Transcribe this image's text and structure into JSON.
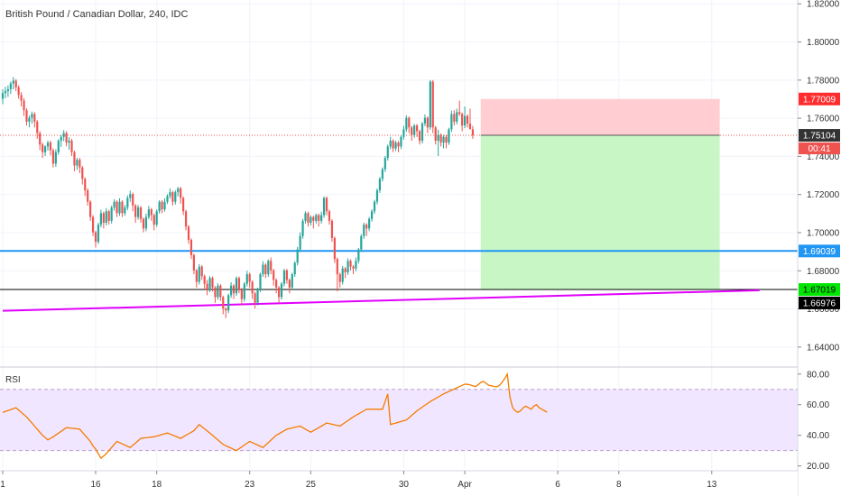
{
  "colors": {
    "up": "#26a69a",
    "down": "#ef5350",
    "stop_zone": "#ffcdd2",
    "target_zone": "#c8f7c5",
    "support_line": "#2196f3",
    "trendline": "#e100ff",
    "rsi_line": "#f57c00",
    "rsi_band": "#f1e6ff",
    "price_dotted": "#ef5350"
  },
  "chart_data": {
    "type": "candlestick",
    "title": "British Pound / Canadian Dollar, 240, IDC",
    "y_ticks": [
      "1.82000",
      "1.80000",
      "1.78000",
      "1.76000",
      "1.74000",
      "1.72000",
      "1.70000",
      "1.68000",
      "1.66000",
      "1.64000"
    ],
    "ylim": [
      1.63,
      1.822
    ],
    "x_ticks": [
      {
        "label": "1",
        "index": 0
      },
      {
        "label": "16",
        "index": 35
      },
      {
        "label": "18",
        "index": 58
      },
      {
        "label": "23",
        "index": 93
      },
      {
        "label": "25",
        "index": 116
      },
      {
        "label": "30",
        "index": 151
      },
      {
        "label": "Apr",
        "index": 174
      },
      {
        "label": "6",
        "index": 209
      },
      {
        "label": "8",
        "index": 232
      },
      {
        "label": "13",
        "index": 267
      }
    ],
    "candles": [
      [
        1.7702,
        1.7752,
        1.7674,
        1.7732
      ],
      [
        1.7732,
        1.7765,
        1.7705,
        1.7742
      ],
      [
        1.7742,
        1.7772,
        1.7712,
        1.7752
      ],
      [
        1.7752,
        1.7792,
        1.7728,
        1.7782
      ],
      [
        1.7782,
        1.7816,
        1.7752,
        1.7797
      ],
      [
        1.7797,
        1.7805,
        1.7742,
        1.7762
      ],
      [
        1.7762,
        1.7772,
        1.7702,
        1.7722
      ],
      [
        1.7722,
        1.7737,
        1.7662,
        1.7692
      ],
      [
        1.7692,
        1.7705,
        1.7612,
        1.7642
      ],
      [
        1.7642,
        1.7652,
        1.7562,
        1.7582
      ],
      [
        1.7582,
        1.7614,
        1.7552,
        1.7602
      ],
      [
        1.7602,
        1.7635,
        1.7572,
        1.7622
      ],
      [
        1.7622,
        1.7632,
        1.7552,
        1.7582
      ],
      [
        1.7582,
        1.759,
        1.7492,
        1.7522
      ],
      [
        1.7522,
        1.7532,
        1.7432,
        1.7462
      ],
      [
        1.7462,
        1.7472,
        1.7392,
        1.7422
      ],
      [
        1.7422,
        1.7458,
        1.7402,
        1.7452
      ],
      [
        1.7452,
        1.7482,
        1.743,
        1.7472
      ],
      [
        1.7472,
        1.7482,
        1.7405,
        1.7432
      ],
      [
        1.7432,
        1.7442,
        1.7342,
        1.7362
      ],
      [
        1.7362,
        1.7437,
        1.7345,
        1.7422
      ],
      [
        1.7422,
        1.749,
        1.7408,
        1.7482
      ],
      [
        1.7482,
        1.7512,
        1.745,
        1.7502
      ],
      [
        1.7502,
        1.7538,
        1.748,
        1.7522
      ],
      [
        1.7522,
        1.7532,
        1.7452,
        1.7472
      ],
      [
        1.7472,
        1.75,
        1.7435,
        1.7482
      ],
      [
        1.7482,
        1.7492,
        1.7402,
        1.7422
      ],
      [
        1.7422,
        1.743,
        1.7322,
        1.7352
      ],
      [
        1.7352,
        1.7392,
        1.733,
        1.7382
      ],
      [
        1.7382,
        1.7392,
        1.7312,
        1.7342
      ],
      [
        1.7342,
        1.735,
        1.7252,
        1.7282
      ],
      [
        1.7282,
        1.729,
        1.7192,
        1.7222
      ],
      [
        1.7222,
        1.7232,
        1.7142,
        1.7162
      ],
      [
        1.7162,
        1.717,
        1.7062,
        1.7082
      ],
      [
        1.7082,
        1.7092,
        1.6982,
        1.7002
      ],
      [
        1.7002,
        1.701,
        1.6922,
        1.6952
      ],
      [
        1.6952,
        1.7052,
        1.694,
        1.7042
      ],
      [
        1.7042,
        1.712,
        1.7028,
        1.7102
      ],
      [
        1.7102,
        1.711,
        1.7022,
        1.7052
      ],
      [
        1.7052,
        1.7128,
        1.7038,
        1.7112
      ],
      [
        1.7112,
        1.712,
        1.7042,
        1.7062
      ],
      [
        1.7062,
        1.7142,
        1.7048,
        1.7132
      ],
      [
        1.7132,
        1.7175,
        1.7115,
        1.7162
      ],
      [
        1.7162,
        1.717,
        1.7082,
        1.7102
      ],
      [
        1.7102,
        1.718,
        1.7088,
        1.7162
      ],
      [
        1.7162,
        1.717,
        1.7082,
        1.7102
      ],
      [
        1.7102,
        1.7145,
        1.7088,
        1.7132
      ],
      [
        1.7132,
        1.7195,
        1.7118,
        1.7182
      ],
      [
        1.7182,
        1.722,
        1.7162,
        1.7202
      ],
      [
        1.7202,
        1.721,
        1.7112,
        1.7142
      ],
      [
        1.7142,
        1.715,
        1.7052,
        1.7082
      ],
      [
        1.7082,
        1.7145,
        1.7068,
        1.7132
      ],
      [
        1.7132,
        1.714,
        1.7052,
        1.7072
      ],
      [
        1.7072,
        1.708,
        1.7002,
        1.7022
      ],
      [
        1.7022,
        1.71,
        1.7008,
        1.7082
      ],
      [
        1.7082,
        1.714,
        1.707,
        1.7122
      ],
      [
        1.7122,
        1.713,
        1.7062,
        1.7092
      ],
      [
        1.7092,
        1.71,
        1.7012,
        1.7042
      ],
      [
        1.7042,
        1.7122,
        1.703,
        1.7112
      ],
      [
        1.7112,
        1.717,
        1.71,
        1.7162
      ],
      [
        1.7162,
        1.717,
        1.7102,
        1.7122
      ],
      [
        1.7122,
        1.718,
        1.711,
        1.7162
      ],
      [
        1.7162,
        1.7202,
        1.715,
        1.7192
      ],
      [
        1.7192,
        1.7232,
        1.7178,
        1.7212
      ],
      [
        1.7212,
        1.722,
        1.7142,
        1.7162
      ],
      [
        1.7162,
        1.7222,
        1.7148,
        1.7212
      ],
      [
        1.7212,
        1.724,
        1.719,
        1.7232
      ],
      [
        1.7232,
        1.724,
        1.7152,
        1.7182
      ],
      [
        1.7182,
        1.719,
        1.7092,
        1.7112
      ],
      [
        1.7112,
        1.712,
        1.7012,
        1.7032
      ],
      [
        1.7032,
        1.704,
        1.6942,
        1.6962
      ],
      [
        1.6962,
        1.697,
        1.6862,
        1.6882
      ],
      [
        1.6882,
        1.689,
        1.6782,
        1.6802
      ],
      [
        1.6802,
        1.681,
        1.6712,
        1.6742
      ],
      [
        1.6742,
        1.6835,
        1.6728,
        1.6822
      ],
      [
        1.6822,
        1.683,
        1.6752,
        1.6772
      ],
      [
        1.6772,
        1.678,
        1.6702,
        1.6732
      ],
      [
        1.6732,
        1.6752,
        1.6672,
        1.6702
      ],
      [
        1.6702,
        1.6772,
        1.6688,
        1.6762
      ],
      [
        1.6762,
        1.677,
        1.6692,
        1.6712
      ],
      [
        1.6712,
        1.672,
        1.6632,
        1.6662
      ],
      [
        1.6662,
        1.6735,
        1.6648,
        1.6722
      ],
      [
        1.6722,
        1.673,
        1.6642,
        1.6662
      ],
      [
        1.6662,
        1.667,
        1.6572,
        1.6602
      ],
      [
        1.6602,
        1.661,
        1.6552,
        1.6592
      ],
      [
        1.6592,
        1.668,
        1.6578,
        1.6672
      ],
      [
        1.6672,
        1.674,
        1.6658,
        1.6722
      ],
      [
        1.6722,
        1.673,
        1.6652,
        1.6682
      ],
      [
        1.6682,
        1.677,
        1.6668,
        1.6762
      ],
      [
        1.6762,
        1.677,
        1.6682,
        1.6702
      ],
      [
        1.6702,
        1.671,
        1.6622,
        1.6652
      ],
      [
        1.6652,
        1.674,
        1.6638,
        1.6732
      ],
      [
        1.6732,
        1.68,
        1.6718,
        1.6782
      ],
      [
        1.6782,
        1.679,
        1.6712,
        1.6742
      ],
      [
        1.6742,
        1.675,
        1.6652,
        1.6682
      ],
      [
        1.6682,
        1.669,
        1.6602,
        1.6632
      ],
      [
        1.6632,
        1.6712,
        1.6618,
        1.6702
      ],
      [
        1.6702,
        1.679,
        1.6688,
        1.6782
      ],
      [
        1.6782,
        1.685,
        1.6768,
        1.6832
      ],
      [
        1.6832,
        1.684,
        1.6762,
        1.6782
      ],
      [
        1.6782,
        1.686,
        1.6768,
        1.6852
      ],
      [
        1.6852,
        1.687,
        1.6782,
        1.6802
      ],
      [
        1.6802,
        1.681,
        1.6722,
        1.6752
      ],
      [
        1.6752,
        1.676,
        1.6682,
        1.6712
      ],
      [
        1.6712,
        1.672,
        1.6632,
        1.6662
      ],
      [
        1.6662,
        1.674,
        1.6648,
        1.6732
      ],
      [
        1.6732,
        1.681,
        1.6718,
        1.6802
      ],
      [
        1.6802,
        1.681,
        1.6732,
        1.6752
      ],
      [
        1.6752,
        1.676,
        1.6682,
        1.6712
      ],
      [
        1.6712,
        1.679,
        1.6698,
        1.6782
      ],
      [
        1.6782,
        1.685,
        1.6768,
        1.6842
      ],
      [
        1.6842,
        1.6925,
        1.6828,
        1.6912
      ],
      [
        1.6912,
        1.7002,
        1.6898,
        1.6982
      ],
      [
        1.6982,
        1.7072,
        1.6968,
        1.7062
      ],
      [
        1.7062,
        1.7112,
        1.7048,
        1.7102
      ],
      [
        1.7102,
        1.711,
        1.7032,
        1.7052
      ],
      [
        1.7052,
        1.709,
        1.7038,
        1.7082
      ],
      [
        1.7082,
        1.709,
        1.7022,
        1.7062
      ],
      [
        1.7062,
        1.71,
        1.7048,
        1.7092
      ],
      [
        1.7092,
        1.71,
        1.7032,
        1.7062
      ],
      [
        1.7062,
        1.711,
        1.7048,
        1.7092
      ],
      [
        1.7092,
        1.719,
        1.7078,
        1.7182
      ],
      [
        1.7182,
        1.719,
        1.7092,
        1.7112
      ],
      [
        1.7112,
        1.712,
        1.7042,
        1.7062
      ],
      [
        1.7062,
        1.707,
        1.6952,
        1.6972
      ],
      [
        1.6972,
        1.698,
        1.6842,
        1.6862
      ],
      [
        1.6862,
        1.687,
        1.6692,
        1.6782
      ],
      [
        1.6782,
        1.679,
        1.6712,
        1.6742
      ],
      [
        1.6742,
        1.6825,
        1.6728,
        1.6812
      ],
      [
        1.6812,
        1.682,
        1.6762,
        1.6792
      ],
      [
        1.6792,
        1.6865,
        1.6778,
        1.6852
      ],
      [
        1.6852,
        1.686,
        1.6802,
        1.6822
      ],
      [
        1.6822,
        1.683,
        1.6782,
        1.6812
      ],
      [
        1.6812,
        1.687,
        1.6798,
        1.6852
      ],
      [
        1.6852,
        1.692,
        1.6838,
        1.6912
      ],
      [
        1.6912,
        1.6992,
        1.6898,
        1.6982
      ],
      [
        1.6982,
        1.7052,
        1.6968,
        1.7042
      ],
      [
        1.7042,
        1.705,
        1.6982,
        1.7022
      ],
      [
        1.7022,
        1.7082,
        1.7008,
        1.7072
      ],
      [
        1.7072,
        1.7122,
        1.7058,
        1.7112
      ],
      [
        1.7112,
        1.7172,
        1.7098,
        1.7162
      ],
      [
        1.7162,
        1.7232,
        1.7148,
        1.7222
      ],
      [
        1.7222,
        1.7292,
        1.7208,
        1.7282
      ],
      [
        1.7282,
        1.7342,
        1.7268,
        1.7332
      ],
      [
        1.7332,
        1.7402,
        1.7318,
        1.7392
      ],
      [
        1.7392,
        1.7462,
        1.7378,
        1.7452
      ],
      [
        1.7452,
        1.7502,
        1.7438,
        1.7482
      ],
      [
        1.7482,
        1.749,
        1.7422,
        1.7442
      ],
      [
        1.7442,
        1.7482,
        1.7428,
        1.7472
      ],
      [
        1.7472,
        1.748,
        1.7422,
        1.7452
      ],
      [
        1.7452,
        1.7512,
        1.7438,
        1.7502
      ],
      [
        1.7502,
        1.756,
        1.7488,
        1.7542
      ],
      [
        1.7542,
        1.7615,
        1.7528,
        1.7602
      ],
      [
        1.7602,
        1.761,
        1.7522,
        1.7552
      ],
      [
        1.7552,
        1.756,
        1.7482,
        1.7512
      ],
      [
        1.7512,
        1.757,
        1.7498,
        1.7562
      ],
      [
        1.7562,
        1.757,
        1.7502,
        1.7532
      ],
      [
        1.7532,
        1.754,
        1.7462,
        1.7482
      ],
      [
        1.7482,
        1.758,
        1.7468,
        1.7572
      ],
      [
        1.7572,
        1.762,
        1.7558,
        1.7602
      ],
      [
        1.7602,
        1.761,
        1.7522,
        1.7552
      ],
      [
        1.7552,
        1.78,
        1.754,
        1.7792
      ],
      [
        1.7792,
        1.78,
        1.7522,
        1.7552
      ],
      [
        1.7552,
        1.756,
        1.7462,
        1.7482
      ],
      [
        1.7482,
        1.754,
        1.7402,
        1.7512
      ],
      [
        1.7512,
        1.752,
        1.7452,
        1.7472
      ],
      [
        1.7472,
        1.7512,
        1.7442,
        1.7502
      ],
      [
        1.7502,
        1.7512,
        1.7442,
        1.7472
      ],
      [
        1.7472,
        1.755,
        1.746,
        1.7542
      ],
      [
        1.7542,
        1.764,
        1.7528,
        1.7622
      ],
      [
        1.7622,
        1.7642,
        1.7562,
        1.7582
      ],
      [
        1.7582,
        1.765,
        1.7568,
        1.7632
      ],
      [
        1.7632,
        1.7692,
        1.7612,
        1.7622
      ],
      [
        1.7622,
        1.763,
        1.7532,
        1.7562
      ],
      [
        1.7562,
        1.7662,
        1.7548,
        1.7612
      ],
      [
        1.7612,
        1.762,
        1.7552,
        1.7572
      ],
      [
        1.7572,
        1.765,
        1.7558,
        1.7542
      ],
      [
        1.7542,
        1.756,
        1.7492,
        1.751
      ]
    ],
    "levels": {
      "stop": {
        "price": 1.77009,
        "label": "1.77009"
      },
      "entry": {
        "price": 1.75104,
        "label": "1.75104"
      },
      "countdown": "00:41",
      "support": {
        "price": 1.69039,
        "label": "1.69039"
      },
      "target": {
        "price": 1.67019,
        "label": "1.67019"
      },
      "trendline_end": {
        "price": 1.66976,
        "label": "1.66976"
      }
    },
    "trendline": {
      "start_index": 0,
      "start_price": 1.659,
      "end_index": 285,
      "end_price": 1.66976
    },
    "position_zone": {
      "start_index": 180,
      "end_index": 270
    },
    "rsi": {
      "label": "RSI",
      "y_ticks": [
        "80.00",
        "60.00",
        "40.00",
        "20.00"
      ],
      "ylim": [
        18,
        84
      ],
      "upper": 70,
      "lower": 30,
      "values": [
        55,
        55.6,
        56.2,
        56.8,
        57.4,
        58,
        56.5,
        55,
        53.5,
        52,
        50,
        48,
        46,
        44,
        42,
        40,
        38.5,
        37,
        38,
        39,
        40.2,
        41.4,
        42.6,
        43.8,
        45,
        44.8,
        44.6,
        44.4,
        44.2,
        44,
        42,
        40,
        38,
        36,
        33,
        31,
        28,
        25,
        26.5,
        28,
        30,
        32,
        34,
        36,
        35.2,
        34.4,
        33.6,
        32.8,
        32,
        33.5,
        35,
        36.5,
        38,
        38.2,
        38.4,
        38.6,
        38.8,
        39,
        39.5,
        40,
        40.5,
        41,
        41.5,
        40.8,
        40.1,
        39.4,
        38.7,
        38,
        39,
        40,
        41,
        42,
        43,
        45,
        47,
        45.6,
        44.2,
        42.8,
        41.4,
        40,
        38.5,
        37,
        35.5,
        34,
        33.2,
        32.4,
        31.6,
        30.8,
        30,
        31.2,
        32.4,
        33.6,
        34.8,
        36,
        35.2,
        34.4,
        33.6,
        32.8,
        32,
        33.6,
        35.2,
        36.8,
        38.4,
        40,
        41,
        42,
        43,
        44,
        44.4,
        44.8,
        45.2,
        45.6,
        46,
        45,
        44,
        43,
        42,
        43,
        44,
        45,
        46,
        47,
        48,
        47.6,
        47.2,
        46.8,
        46.4,
        46,
        47.2,
        48.4,
        49.6,
        50.8,
        52,
        53,
        54,
        55,
        56,
        57,
        57,
        57,
        57,
        57,
        57,
        57,
        62,
        67,
        47,
        47.5,
        48,
        48.5,
        49,
        49.5,
        50,
        51.5,
        53,
        54.5,
        56,
        57.2,
        58.4,
        59.6,
        60.8,
        62,
        63,
        64,
        65,
        66,
        67,
        67.8,
        68.6,
        69.4,
        70.2,
        71,
        71.8,
        72.6,
        73.4,
        73.3,
        72.9,
        72.4,
        71.8,
        73,
        74.5,
        75.2,
        74,
        72.7,
        72.4,
        71.9,
        71.7,
        72.5,
        74.5,
        77,
        80,
        65,
        58,
        56,
        55,
        56,
        58,
        59,
        58,
        57,
        59,
        60,
        58,
        57,
        56,
        55
      ]
    }
  }
}
